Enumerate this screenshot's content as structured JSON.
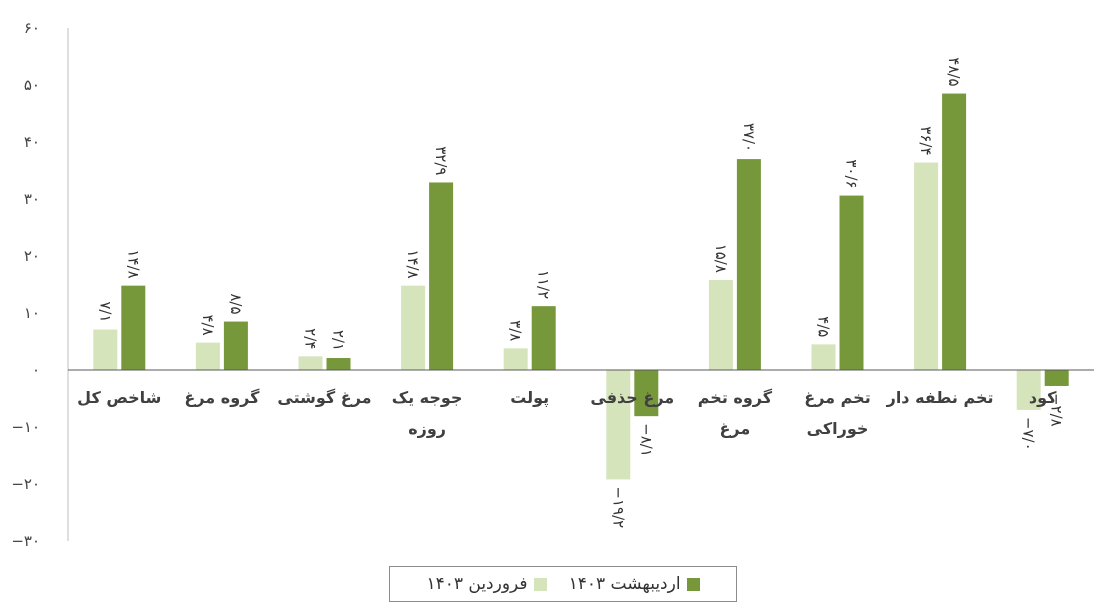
{
  "chart_data": {
    "type": "bar",
    "categories": [
      [
        "شاخص کل"
      ],
      [
        "گروه مرغ"
      ],
      [
        "مرغ گوشتی"
      ],
      [
        "جوجه یک",
        "روزه"
      ],
      [
        "پولت"
      ],
      [
        "مرغ حذفی"
      ],
      [
        "گروه تخم",
        "مرغ"
      ],
      [
        "تخم مرغ",
        "خوراکی"
      ],
      [
        "تخم نطفه دار"
      ],
      [
        "کود"
      ]
    ],
    "series": [
      {
        "name": "فروردین ۱۴۰۳",
        "color": "#d6e4bc",
        "values": [
          7.1,
          4.8,
          2.4,
          14.8,
          3.8,
          -19.2,
          15.8,
          4.5,
          36.4,
          -7.0
        ],
        "labels": [
          "۷/۱",
          "۴/۸",
          "۲/۴",
          "۱۴/۸",
          "۳/۸",
          "−۱۹/۲",
          "۱۵/۸",
          "۴/۵",
          "۳۶/۴",
          "−۷/۰"
        ]
      },
      {
        "name": "اردیبهشت ۱۴۰۳",
        "color": "#76973a",
        "values": [
          14.8,
          8.5,
          2.1,
          32.9,
          11.2,
          -8.1,
          37.0,
          30.6,
          48.5,
          -2.8
        ],
        "labels": [
          "۱۴/۸",
          "۸/۵",
          "۲/۱",
          "۳۲/۹",
          "۱۱/۲",
          "−۸/۱",
          "۳۷/۰",
          "۳۰/۶",
          "۴۸/۵",
          "−۲/۸"
        ]
      }
    ],
    "y_ticks": [
      60,
      50,
      40,
      30,
      20,
      10,
      0,
      -10,
      -20,
      -30
    ],
    "y_tick_labels": [
      "۶۰",
      "۵۰",
      "۴۰",
      "۳۰",
      "۲۰",
      "۱۰",
      "۰",
      "−۱۰",
      "−۲۰",
      "−۳۰"
    ],
    "ylim": [
      -30,
      60
    ],
    "grid": false,
    "legend_position": "bottom"
  }
}
